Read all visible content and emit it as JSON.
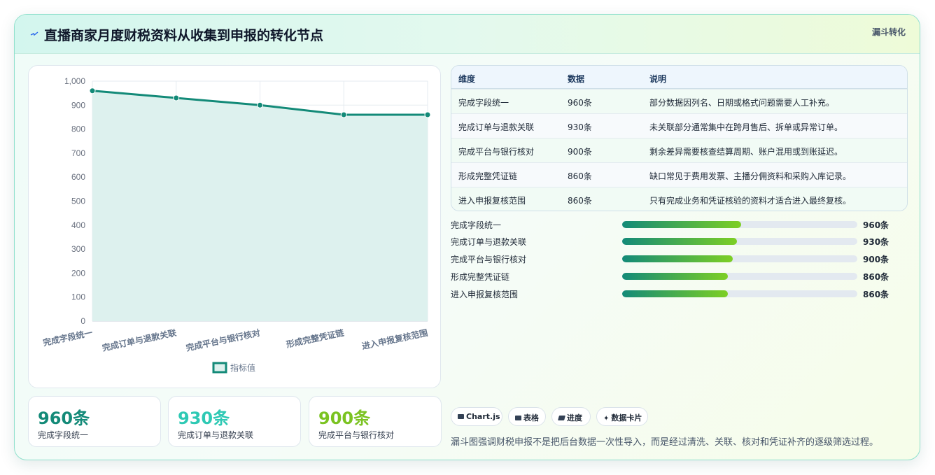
{
  "header": {
    "title": "直播商家月度财税资料从收集到申报的转化节点",
    "tag": "漏斗转化"
  },
  "colors": {
    "line": "#138a78",
    "area": "#ddf1ee",
    "stat_1": "#138a78",
    "stat_2": "#2ec9b4",
    "stat_3": "#7bc321"
  },
  "chart_data": {
    "type": "line",
    "categories": [
      "完成字段统一",
      "完成订单与退款关联",
      "完成平台与银行核对",
      "形成完整凭证链",
      "进入申报复核范围"
    ],
    "series": [
      {
        "name": "指标值",
        "values": [
          960,
          930,
          900,
          860,
          860
        ]
      }
    ],
    "ylim": [
      0,
      1000
    ],
    "yticks": [
      "0",
      "100",
      "200",
      "300",
      "400",
      "500",
      "600",
      "700",
      "800",
      "900",
      "1,000"
    ],
    "grid": true,
    "legend": "bottom",
    "fill": true
  },
  "stats": [
    {
      "value": "960条",
      "label": "完成字段统一"
    },
    {
      "value": "930条",
      "label": "完成订单与退款关联"
    },
    {
      "value": "900条",
      "label": "完成平台与银行核对"
    }
  ],
  "table": {
    "headers": [
      "维度",
      "数据",
      "说明"
    ],
    "rows": [
      [
        "完成字段统一",
        "960条",
        "部分数据因列名、日期或格式问题需要人工补充。"
      ],
      [
        "完成订单与退款关联",
        "930条",
        "未关联部分通常集中在跨月售后、拆单或异常订单。"
      ],
      [
        "完成平台与银行核对",
        "900条",
        "剩余差异需要核查结算周期、账户混用或到账延迟。"
      ],
      [
        "形成完整凭证链",
        "860条",
        "缺口常见于费用发票、主播分佣资料和采购入库记录。"
      ],
      [
        "进入申报复核范围",
        "860条",
        "只有完成业务和凭证核验的资料才适合进入最终复核。"
      ]
    ]
  },
  "progress": [
    {
      "label": "完成字段统一",
      "value": "960条",
      "fraction": 0.505
    },
    {
      "label": "完成订单与退款关联",
      "value": "930条",
      "fraction": 0.487
    },
    {
      "label": "完成平台与银行核对",
      "value": "900条",
      "fraction": 0.47
    },
    {
      "label": "形成完整凭证链",
      "value": "860条",
      "fraction": 0.45
    },
    {
      "label": "进入申报复核范围",
      "value": "860条",
      "fraction": 0.45
    }
  ],
  "pills": [
    {
      "label": "Chart.js",
      "icon": "chart-icon"
    },
    {
      "label": "表格",
      "icon": "table-icon"
    },
    {
      "label": "进度",
      "icon": "progress-icon"
    },
    {
      "label": "数据卡片",
      "icon": "sparkle-icon"
    }
  ],
  "footnote": "漏斗图强调财税申报不是把后台数据一次性导入，而是经过清洗、关联、核对和凭证补齐的逐级筛选过程。"
}
